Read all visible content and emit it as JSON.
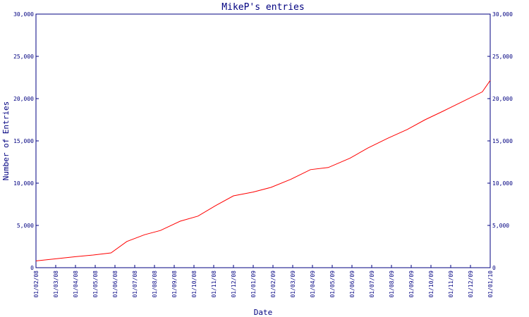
{
  "chart_data": {
    "type": "line",
    "title": "MikeP's entries",
    "xlabel": "Date",
    "ylabel": "Number of Entries",
    "categories": [
      "01/02/08",
      "01/03/08",
      "01/04/08",
      "01/05/08",
      "01/06/08",
      "01/07/08",
      "01/08/08",
      "01/09/08",
      "01/10/08",
      "01/11/08",
      "01/12/08",
      "01/01/09",
      "01/02/09",
      "01/03/09",
      "01/04/09",
      "01/05/09",
      "01/06/09",
      "01/07/09",
      "01/08/09",
      "01/09/09",
      "01/10/09",
      "01/11/09",
      "01/12/09",
      "01/01/10"
    ],
    "yticks": [
      0,
      5000,
      10000,
      15000,
      20000,
      25000,
      30000
    ],
    "ytick_labels": [
      "0",
      "5,000",
      "10,000",
      "15,000",
      "20,000",
      "25,000",
      "30,000"
    ],
    "ylim": [
      0,
      30000
    ],
    "grid": false,
    "series": [
      {
        "x": [
          0,
          1,
          2,
          2.9,
          3.8,
          4.6,
          5.5,
          6.3,
          7.3,
          8.2,
          9.1,
          10.0,
          11.0,
          11.9,
          12.9,
          13.9,
          14.8,
          15.9,
          16.8,
          17.8,
          18.8,
          19.7,
          20.6,
          21.6,
          22.6,
          23.0
        ],
        "y": [
          800,
          1050,
          1300,
          1500,
          1750,
          3100,
          3900,
          4400,
          5500,
          6100,
          7350,
          8500,
          8950,
          9500,
          10450,
          11600,
          11850,
          12950,
          14150,
          15300,
          16350,
          17500,
          18500,
          19650,
          20800,
          22150
        ],
        "color": "#ff0000"
      }
    ]
  }
}
